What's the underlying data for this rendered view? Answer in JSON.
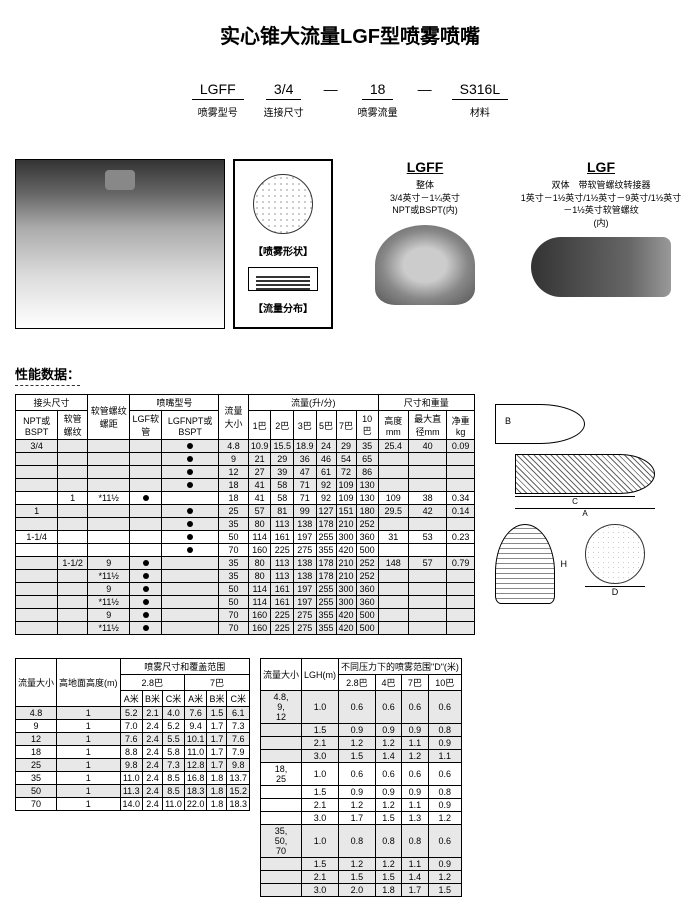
{
  "title": "实心锥大流量LGF型喷雾喷嘴",
  "spec": [
    {
      "code": "LGFF",
      "label": "喷雾型号"
    },
    {
      "code": "3/4",
      "label": "连接尺寸"
    },
    {
      "code": "18",
      "label": "喷雾流量"
    },
    {
      "code": "S316L",
      "label": "材料"
    }
  ],
  "shape_labels": {
    "shape": "【喷雾形状】",
    "dist": "【流量分布】"
  },
  "products": {
    "lgff": {
      "name": "LGFF",
      "desc1": "整体",
      "desc2": "3/4英寸－1¼英寸",
      "desc3": "NPT或BSPT(内)"
    },
    "lgf": {
      "name": "LGF",
      "desc1": "双体　带软管螺纹转接器",
      "desc2": "1英寸－1½英寸/1½英寸－9英寸/1½英寸－1½英寸软管螺纹",
      "desc3": "(内)"
    }
  },
  "perf_title": "性能数据：",
  "perf_headers": {
    "conn": "接头尺寸",
    "npt": "NPT或BSPT",
    "hose": "软管螺纹",
    "pitch": "软管螺纹螺距",
    "model": "喷嘴型号",
    "lgf": "LGF软管",
    "lgfnpt": "LGFNPT或BSPT",
    "size": "流量大小",
    "flow": "流量(升/分)",
    "dim": "尺寸和重量",
    "b1": "1巴",
    "b2": "2巴",
    "b3": "3巴",
    "b5": "5巴",
    "b7": "7巴",
    "b10": "10巴",
    "bmm": "高度mm",
    "maxd": "最大直径mm",
    "wt": "净重kg"
  },
  "perf_rows": [
    {
      "npt": "3/4",
      "hose": "",
      "pitch": "",
      "lgf": "",
      "lgfn": "●",
      "size": "4.8",
      "f": [
        "10.9",
        "15.5",
        "18.9",
        "24",
        "29",
        "35"
      ],
      "h": "25.4",
      "d": "40",
      "w": "0.09",
      "alt": true
    },
    {
      "npt": "",
      "hose": "",
      "pitch": "",
      "lgf": "",
      "lgfn": "●",
      "size": "9",
      "f": [
        "21",
        "29",
        "36",
        "46",
        "54",
        "65"
      ],
      "h": "",
      "d": "",
      "w": "",
      "alt": true
    },
    {
      "npt": "",
      "hose": "",
      "pitch": "",
      "lgf": "",
      "lgfn": "●",
      "size": "12",
      "f": [
        "27",
        "39",
        "47",
        "61",
        "72",
        "86"
      ],
      "h": "",
      "d": "",
      "w": "",
      "alt": true
    },
    {
      "npt": "",
      "hose": "",
      "pitch": "",
      "lgf": "",
      "lgfn": "●",
      "size": "18",
      "f": [
        "41",
        "58",
        "71",
        "92",
        "109",
        "130"
      ],
      "h": "",
      "d": "",
      "w": "",
      "alt": true
    },
    {
      "npt": "",
      "hose": "1",
      "pitch": "*11½",
      "lgf": "●",
      "lgfn": "",
      "size": "18",
      "f": [
        "41",
        "58",
        "71",
        "92",
        "109",
        "130"
      ],
      "h": "109",
      "d": "38",
      "w": "0.34",
      "alt": false
    },
    {
      "npt": "1",
      "hose": "",
      "pitch": "",
      "lgf": "",
      "lgfn": "●",
      "size": "25",
      "f": [
        "57",
        "81",
        "99",
        "127",
        "151",
        "180"
      ],
      "h": "29.5",
      "d": "42",
      "w": "0.14",
      "alt": true
    },
    {
      "npt": "",
      "hose": "",
      "pitch": "",
      "lgf": "",
      "lgfn": "●",
      "size": "35",
      "f": [
        "80",
        "113",
        "138",
        "178",
        "210",
        "252"
      ],
      "h": "",
      "d": "",
      "w": "",
      "alt": true
    },
    {
      "npt": "1-1/4",
      "hose": "",
      "pitch": "",
      "lgf": "",
      "lgfn": "●",
      "size": "50",
      "f": [
        "114",
        "161",
        "197",
        "255",
        "300",
        "360"
      ],
      "h": "31",
      "d": "53",
      "w": "0.23",
      "alt": false
    },
    {
      "npt": "",
      "hose": "",
      "pitch": "",
      "lgf": "",
      "lgfn": "●",
      "size": "70",
      "f": [
        "160",
        "225",
        "275",
        "355",
        "420",
        "500"
      ],
      "h": "",
      "d": "",
      "w": "",
      "alt": false
    },
    {
      "npt": "",
      "hose": "1-1/2",
      "pitch": "9",
      "lgf": "●",
      "lgfn": "",
      "size": "35",
      "f": [
        "80",
        "113",
        "138",
        "178",
        "210",
        "252"
      ],
      "h": "148",
      "d": "57",
      "w": "0.79",
      "alt": true
    },
    {
      "npt": "",
      "hose": "",
      "pitch": "*11½",
      "lgf": "●",
      "lgfn": "",
      "size": "35",
      "f": [
        "80",
        "113",
        "138",
        "178",
        "210",
        "252"
      ],
      "h": "",
      "d": "",
      "w": "",
      "alt": true
    },
    {
      "npt": "",
      "hose": "",
      "pitch": "9",
      "lgf": "●",
      "lgfn": "",
      "size": "50",
      "f": [
        "114",
        "161",
        "197",
        "255",
        "300",
        "360"
      ],
      "h": "",
      "d": "",
      "w": "",
      "alt": true
    },
    {
      "npt": "",
      "hose": "",
      "pitch": "*11½",
      "lgf": "●",
      "lgfn": "",
      "size": "50",
      "f": [
        "114",
        "161",
        "197",
        "255",
        "300",
        "360"
      ],
      "h": "",
      "d": "",
      "w": "",
      "alt": true
    },
    {
      "npt": "",
      "hose": "",
      "pitch": "9",
      "lgf": "●",
      "lgfn": "",
      "size": "70",
      "f": [
        "160",
        "225",
        "275",
        "355",
        "420",
        "500"
      ],
      "h": "",
      "d": "",
      "w": "",
      "alt": true
    },
    {
      "npt": "",
      "hose": "",
      "pitch": "*11½",
      "lgf": "●",
      "lgfn": "",
      "size": "70",
      "f": [
        "160",
        "225",
        "275",
        "355",
        "420",
        "500"
      ],
      "h": "",
      "d": "",
      "w": "",
      "alt": true
    }
  ],
  "cover_headers": {
    "size": "流量大小",
    "height": "高地面高度(m)",
    "range": "喷雾尺寸和覆盖范围",
    "b28": "2.8巴",
    "b7": "7巴",
    "am": "A米",
    "bm": "B米",
    "cm": "C米"
  },
  "cover_rows": [
    {
      "s": "4.8",
      "h": "1",
      "r": [
        "5.2",
        "2.1",
        "4.0",
        "7.6",
        "1.5",
        "6.1"
      ],
      "alt": true
    },
    {
      "s": "9",
      "h": "1",
      "r": [
        "7.0",
        "2.4",
        "5.2",
        "9.4",
        "1.7",
        "7.3"
      ],
      "alt": false
    },
    {
      "s": "12",
      "h": "1",
      "r": [
        "7.6",
        "2.4",
        "5.5",
        "10.1",
        "1.7",
        "7.6"
      ],
      "alt": true
    },
    {
      "s": "18",
      "h": "1",
      "r": [
        "8.8",
        "2.4",
        "5.8",
        "11.0",
        "1.7",
        "7.9"
      ],
      "alt": false
    },
    {
      "s": "25",
      "h": "1",
      "r": [
        "9.8",
        "2.4",
        "7.3",
        "12.8",
        "1.7",
        "9.8"
      ],
      "alt": true
    },
    {
      "s": "35",
      "h": "1",
      "r": [
        "11.0",
        "2.4",
        "8.5",
        "16.8",
        "1.8",
        "13.7"
      ],
      "alt": false
    },
    {
      "s": "50",
      "h": "1",
      "r": [
        "11.3",
        "2.4",
        "8.5",
        "18.3",
        "1.8",
        "15.2"
      ],
      "alt": true
    },
    {
      "s": "70",
      "h": "1",
      "r": [
        "14.0",
        "2.4",
        "11.0",
        "22.0",
        "1.8",
        "18.3"
      ],
      "alt": false
    }
  ],
  "drange_headers": {
    "size": "流量大小",
    "lgh": "LGH(m)",
    "range": "不同压力下的喷雾范围\"D\"(米)",
    "b28": "2.8巴",
    "b4": "4巴",
    "b7": "7巴",
    "b10": "10巴"
  },
  "drange_rows": [
    {
      "s": "4.8,\n9,\n12",
      "h": "1.0",
      "r": [
        "0.6",
        "0.6",
        "0.6",
        "0.6"
      ],
      "alt": true
    },
    {
      "s": "",
      "h": "1.5",
      "r": [
        "0.9",
        "0.9",
        "0.9",
        "0.8"
      ],
      "alt": true
    },
    {
      "s": "",
      "h": "2.1",
      "r": [
        "1.2",
        "1.2",
        "1.1",
        "0.9"
      ],
      "alt": true
    },
    {
      "s": "",
      "h": "3.0",
      "r": [
        "1.5",
        "1.4",
        "1.2",
        "1.1"
      ],
      "alt": true
    },
    {
      "s": "18,\n25",
      "h": "1.0",
      "r": [
        "0.6",
        "0.6",
        "0.6",
        "0.6"
      ],
      "alt": false
    },
    {
      "s": "",
      "h": "1.5",
      "r": [
        "0.9",
        "0.9",
        "0.9",
        "0.8"
      ],
      "alt": false
    },
    {
      "s": "",
      "h": "2.1",
      "r": [
        "1.2",
        "1.2",
        "1.1",
        "0.9"
      ],
      "alt": false
    },
    {
      "s": "",
      "h": "3.0",
      "r": [
        "1.7",
        "1.5",
        "1.3",
        "1.2"
      ],
      "alt": false
    },
    {
      "s": "35,\n50,\n70",
      "h": "1.0",
      "r": [
        "0.8",
        "0.8",
        "0.8",
        "0.6"
      ],
      "alt": true
    },
    {
      "s": "",
      "h": "1.5",
      "r": [
        "1.2",
        "1.2",
        "1.1",
        "0.9"
      ],
      "alt": true
    },
    {
      "s": "",
      "h": "2.1",
      "r": [
        "1.5",
        "1.5",
        "1.4",
        "1.2"
      ],
      "alt": true
    },
    {
      "s": "",
      "h": "3.0",
      "r": [
        "2.0",
        "1.8",
        "1.7",
        "1.5"
      ],
      "alt": true
    }
  ],
  "diag_labels": {
    "a": "A",
    "b": "B",
    "c": "C",
    "h": "H",
    "d": "D"
  }
}
